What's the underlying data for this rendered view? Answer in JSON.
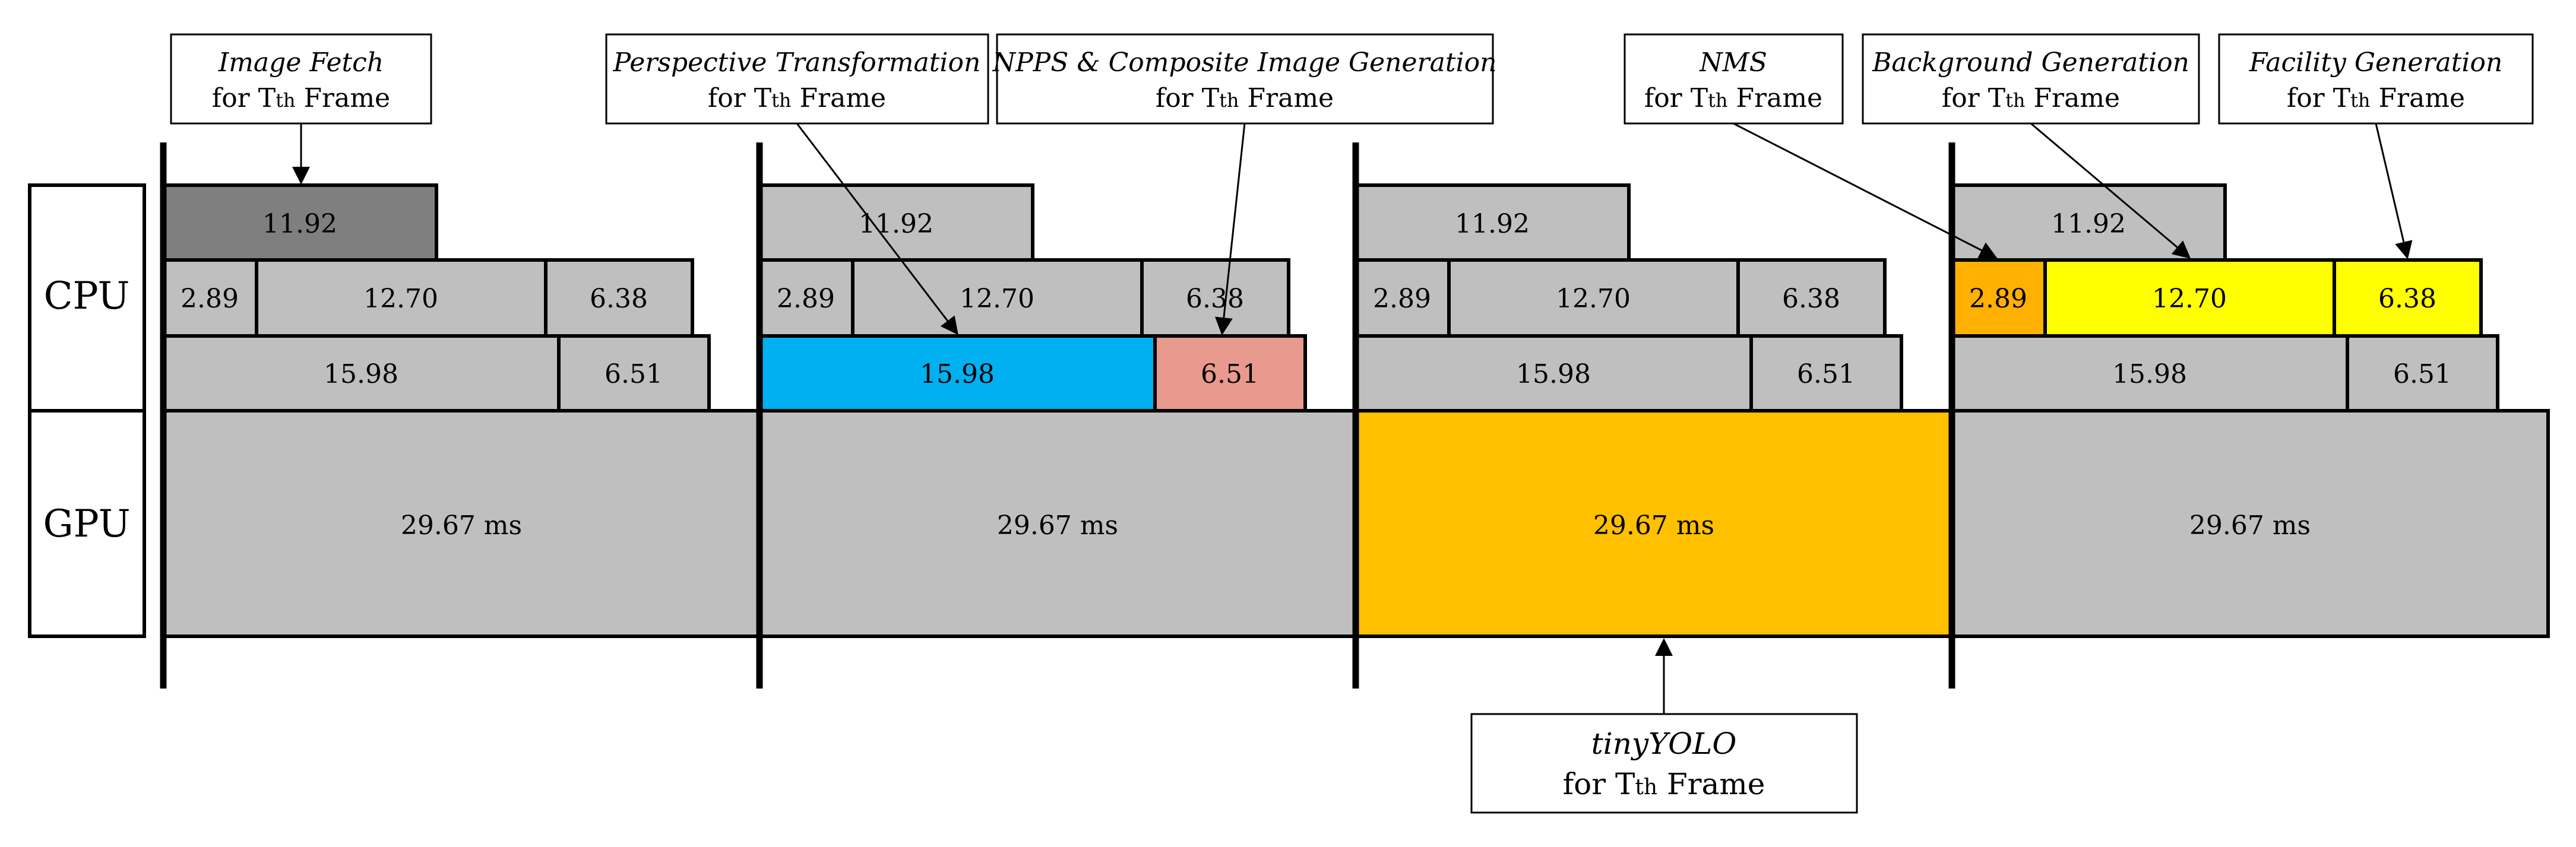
{
  "rows": {
    "cpu": "CPU",
    "gpu": "GPU"
  },
  "frame_columns": [
    {
      "cpu_row1": "11.92",
      "cpu_row2": [
        "2.89",
        "12.70",
        "6.38"
      ],
      "cpu_row3": [
        "15.98",
        "6.51"
      ],
      "gpu": "29.67 ms"
    },
    {
      "cpu_row1": "11.92",
      "cpu_row2": [
        "2.89",
        "12.70",
        "6.38"
      ],
      "cpu_row3": [
        "15.98",
        "6.51"
      ],
      "gpu": "29.67 ms"
    },
    {
      "cpu_row1": "11.92",
      "cpu_row2": [
        "2.89",
        "12.70",
        "6.38"
      ],
      "cpu_row3": [
        "15.98",
        "6.51"
      ],
      "gpu": "29.67 ms"
    },
    {
      "cpu_row1": "11.92",
      "cpu_row2": [
        "2.89",
        "12.70",
        "6.38"
      ],
      "cpu_row3": [
        "15.98",
        "6.51"
      ],
      "gpu": "29.67 ms"
    }
  ],
  "callouts": {
    "image_fetch": {
      "title": "Image Fetch",
      "sub_prefix": "for T",
      "sub_th": "th",
      "sub_suffix": " Frame"
    },
    "perspective": {
      "title": "Perspective Transformation",
      "sub_prefix": "for T",
      "sub_th": "th",
      "sub_suffix": " Frame"
    },
    "npps": {
      "title": "NPPS & Composite Image Generation",
      "sub_prefix": "for T",
      "sub_th": "th",
      "sub_suffix": " Frame"
    },
    "nms": {
      "title": "NMS",
      "sub_prefix": "for T",
      "sub_th": "th",
      "sub_suffix": " Frame"
    },
    "background": {
      "title": "Background Generation",
      "sub_prefix": "for T",
      "sub_th": "th",
      "sub_suffix": " Frame"
    },
    "facility": {
      "title": "Facility Generation",
      "sub_prefix": "for T",
      "sub_th": "th",
      "sub_suffix": " Frame"
    },
    "tinyyolo": {
      "title": "tinyYOLO",
      "sub_prefix": "for T",
      "sub_th": "th",
      "sub_suffix": " Frame"
    }
  },
  "colors": {
    "gray": "#c0bfc0",
    "dark_gray": "#7f7f7f",
    "blue": "#00b0f0",
    "salmon": "#e99a8f",
    "orange": "#ffc000",
    "dark_orange": "#ffb000",
    "yellow": "#ffff00"
  }
}
